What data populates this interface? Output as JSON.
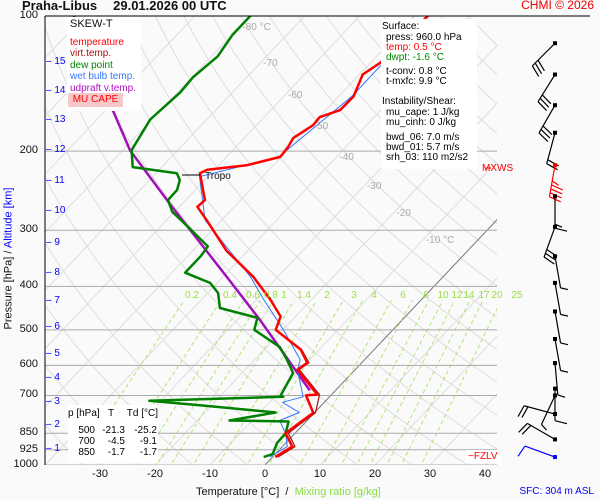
{
  "header": {
    "station": "Praha-Libus",
    "datetime": "29.01.2026 00 UTC",
    "copyright": "CHMI © 2026"
  },
  "legend": {
    "title": "SKEW-T",
    "items": [
      {
        "label": "temperature",
        "color": "#ff0000"
      },
      {
        "label": "virt.temp.",
        "color": "#a01010"
      },
      {
        "label": "dew point",
        "color": "#008000"
      },
      {
        "label": "wet bulb temp.",
        "color": "#3377ff"
      },
      {
        "label": "udpraft v.temp.",
        "color": "#b010c0"
      }
    ],
    "mu_cape_label": "MU CAPE"
  },
  "surface": {
    "heading": "Surface:",
    "press": "press: 960.0 hPa",
    "temp": "temp: 0.5 °C",
    "dwpt": "dwpt: -1.6 °C",
    "tconv": "t-conv: 0.8 °C",
    "tmxfc": "t-mxfc: 9.9 °C"
  },
  "instability": {
    "heading": "Instability/Shear:",
    "mu_cape": "mu_cape: 1 J/kg",
    "mu_cinh": "mu_cinh: 0 J/kg",
    "bwd_06": "bwd_06: 7.0 m/s",
    "bwd_01": "bwd_01: 5.7 m/s",
    "srh_03": "srh_03: 110 m2/s2"
  },
  "level_table": {
    "headers": [
      "p [hPa]",
      "T",
      "Td [°C]"
    ],
    "rows": [
      [
        "500",
        "-21.3",
        "-25.2"
      ],
      [
        "700",
        "-4.5",
        "-9.1"
      ],
      [
        "850",
        "-1.7",
        "-1.7"
      ]
    ]
  },
  "markers": {
    "tropo": "Tropo",
    "mxws": "MXWS",
    "fzlv": "FZLV",
    "sfc": "SFC: 304 m ASL"
  },
  "colors": {
    "temperature": "#ff0000",
    "virt_temp": "#a01010",
    "dewpoint": "#008000",
    "wetbulb": "#3377ff",
    "parcel": "#a010b8",
    "altitude": "#0000ff",
    "mixing": "#99dd44"
  },
  "chart_data": {
    "type": "line",
    "subtype": "skew-t log-p",
    "xlabel": "Temperature [°C]",
    "xlabel_sep": "/",
    "xlabel2": "Mixing ratio [g/kg]",
    "ylabel": "Pressure [hPa]",
    "ylabel_sep": "/",
    "ylabel2": "Altitude [km]",
    "y_scale": "log",
    "ylim": [
      1000,
      100
    ],
    "xlim_at_1000hPa": [
      -40,
      42
    ],
    "pressure_ticks": [
      100,
      200,
      300,
      400,
      500,
      600,
      700,
      850,
      925,
      1000
    ],
    "temperature_ticks": [
      -30,
      -20,
      -10,
      0,
      10,
      20,
      30,
      40
    ],
    "altitude_ticks": [
      {
        "km": "15",
        "p": 126
      },
      {
        "km": "14",
        "p": 146
      },
      {
        "km": "13",
        "p": 170
      },
      {
        "km": "12",
        "p": 198
      },
      {
        "km": "11",
        "p": 232
      },
      {
        "km": "10",
        "p": 271
      },
      {
        "km": "9",
        "p": 318
      },
      {
        "km": "8",
        "p": 371
      },
      {
        "km": "7",
        "p": 428
      },
      {
        "km": "6",
        "p": 491
      },
      {
        "km": "5",
        "p": 563
      },
      {
        "km": "4",
        "p": 637
      },
      {
        "km": "3",
        "p": 722
      },
      {
        "km": "2",
        "p": 812
      },
      {
        "km": "1",
        "p": 917
      }
    ],
    "isotherm_labels": [
      {
        "t": -80,
        "label": "-80 °C"
      },
      {
        "t": -70,
        "label": "-70"
      },
      {
        "t": -60,
        "label": "-60"
      },
      {
        "t": -50,
        "label": "-50"
      },
      {
        "t": -40,
        "label": "-40"
      },
      {
        "t": -30,
        "label": "-30"
      },
      {
        "t": -20,
        "label": "-20"
      },
      {
        "t": -10,
        "label": "-10 °C"
      }
    ],
    "mixing_ratio_labels": [
      "0.2",
      "0.4",
      "0.6",
      "0.8",
      "1",
      "1.4",
      "2",
      "3",
      "4",
      "6",
      "8",
      "10",
      "12",
      "14",
      "17",
      "20",
      "25"
    ],
    "series": [
      {
        "name": "temperature",
        "color": "#ff0000",
        "points": [
          [
            99.5,
            -47.6
          ],
          [
            114,
            -48.2
          ],
          [
            127,
            -48.2
          ],
          [
            135,
            -49.4
          ],
          [
            151,
            -47.3
          ],
          [
            162,
            -47.4
          ],
          [
            168,
            -49.9
          ],
          [
            175,
            -49.7
          ],
          [
            187,
            -51.1
          ],
          [
            196,
            -50.5
          ],
          [
            206,
            -50.2
          ],
          [
            215,
            -54.9
          ],
          [
            220,
            -61.3
          ],
          [
            224,
            -62.0
          ],
          [
            228,
            -61.3
          ],
          [
            257,
            -56.5
          ],
          [
            266,
            -56.7
          ],
          [
            285,
            -52.7
          ],
          [
            333,
            -43.9
          ],
          [
            381,
            -34.5
          ],
          [
            428,
            -27.5
          ],
          [
            467,
            -22.7
          ],
          [
            500,
            -21.3
          ],
          [
            553,
            -13.4
          ],
          [
            592,
            -9.9
          ],
          [
            613,
            -10.5
          ],
          [
            697,
            -2.6
          ],
          [
            700,
            -4.5
          ],
          [
            765,
            -0.2
          ],
          [
            813,
            -1.1
          ],
          [
            850,
            -1.7
          ],
          [
            910,
            1.8
          ],
          [
            960,
            0.5
          ]
        ]
      },
      {
        "name": "virt.temp.",
        "color": "#a01010",
        "points": [
          [
            500,
            -21.2
          ],
          [
            553,
            -13.2
          ],
          [
            592,
            -9.6
          ],
          [
            613,
            -10.2
          ],
          [
            697,
            -2.2
          ],
          [
            765,
            0.2
          ],
          [
            813,
            -0.7
          ],
          [
            850,
            -1.2
          ],
          [
            910,
            2.3
          ],
          [
            960,
            1.0
          ]
        ]
      },
      {
        "name": "dew point",
        "color": "#008000",
        "points": [
          [
            99.5,
            -79.9
          ],
          [
            110,
            -79.9
          ],
          [
            123,
            -78.9
          ],
          [
            137,
            -79.8
          ],
          [
            148,
            -79.5
          ],
          [
            170,
            -80.3
          ],
          [
            199,
            -78.4
          ],
          [
            217,
            -75.3
          ],
          [
            224,
            -66.2
          ],
          [
            232,
            -64.5
          ],
          [
            244,
            -63.3
          ],
          [
            257,
            -63.2
          ],
          [
            273,
            -60.4
          ],
          [
            295,
            -54.9
          ],
          [
            326,
            -48.0
          ],
          [
            343,
            -47.6
          ],
          [
            373,
            -47.6
          ],
          [
            393,
            -41.3
          ],
          [
            414,
            -38.1
          ],
          [
            447,
            -35.2
          ],
          [
            470,
            -26.7
          ],
          [
            500,
            -25.2
          ],
          [
            546,
            -17.6
          ],
          [
            583,
            -14.1
          ],
          [
            624,
            -10.7
          ],
          [
            700,
            -9.1
          ],
          [
            705,
            -8.4
          ],
          [
            719,
            -32.1
          ],
          [
            737,
            -21.6
          ],
          [
            764,
            -7.1
          ],
          [
            796,
            -14.1
          ],
          [
            800,
            -3.2
          ],
          [
            850,
            -1.7
          ],
          [
            893,
            -1.6
          ],
          [
            945,
            -0.5
          ],
          [
            960,
            -1.6
          ]
        ]
      },
      {
        "name": "wet bulb temp.",
        "color": "#3377ff",
        "points": [
          [
            99.5,
            -47.8
          ],
          [
            151,
            -47.6
          ],
          [
            206,
            -50.5
          ],
          [
            228,
            -61.5
          ],
          [
            285,
            -53.0
          ],
          [
            381,
            -35.0
          ],
          [
            428,
            -28.7
          ],
          [
            500,
            -19.9
          ],
          [
            583,
            -11.7
          ],
          [
            613,
            -10.5
          ],
          [
            705,
            -4.8
          ],
          [
            725,
            -7.6
          ],
          [
            764,
            -2.8
          ],
          [
            796,
            -5.0
          ],
          [
            850,
            -1.7
          ],
          [
            910,
            0.9
          ],
          [
            960,
            -0.5
          ]
        ]
      },
      {
        "name": "udpraft v.temp.",
        "color": "#a010b8",
        "points": [
          [
            100,
            -112
          ],
          [
            139,
            -96.2
          ],
          [
            199,
            -78.7
          ],
          [
            263,
            -62.0
          ],
          [
            388,
            -38.2
          ],
          [
            475,
            -25.9
          ],
          [
            638,
            -8.6
          ],
          [
            682,
            -4.7
          ]
        ]
      }
    ],
    "tropopause_hPa": 224,
    "wind_barbs": [
      {
        "p": 115,
        "dir": 225,
        "kt": 30
      },
      {
        "p": 135,
        "dir": 212,
        "kt": 30
      },
      {
        "p": 158,
        "dir": 210,
        "kt": 30
      },
      {
        "p": 182,
        "dir": 195,
        "kt": 20
      },
      {
        "p": 215,
        "dir": 190,
        "kt": 45,
        "mxws": true
      },
      {
        "p": 252,
        "dir": 180,
        "kt": 15
      },
      {
        "p": 295,
        "dir": 200,
        "kt": 30
      },
      {
        "p": 343,
        "dir": 170,
        "kt": 5
      },
      {
        "p": 393,
        "dir": 170,
        "kt": 5
      },
      {
        "p": 455,
        "dir": 170,
        "kt": 5
      },
      {
        "p": 524,
        "dir": 170,
        "kt": 5
      },
      {
        "p": 593,
        "dir": 175,
        "kt": 5
      },
      {
        "p": 676,
        "dir": 180,
        "kt": 10
      },
      {
        "p": 700,
        "dir": 205,
        "kt": 5
      },
      {
        "p": 770,
        "dir": 285,
        "kt": 20
      },
      {
        "p": 877,
        "dir": 300,
        "kt": 20
      },
      {
        "p": 960,
        "dir": 290,
        "kt": 10,
        "surface": true
      }
    ]
  }
}
